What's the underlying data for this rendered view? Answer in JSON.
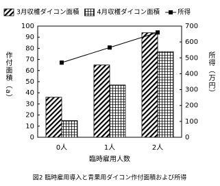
{
  "chart_data": {
    "type": "bar_line",
    "title": "図2 臨時雇用導入と青果用ダイコン作付面積および所得",
    "x_label": "臨時雇用人数",
    "y_label": "作付面積（a）",
    "y2_label": "所得（万円）",
    "categories": [
      "0人",
      "1人",
      "2人"
    ],
    "series": [
      {
        "name": "3月収穫ダイコン面積",
        "type": "bar",
        "pattern": "diagonal",
        "color": "#000000",
        "values": [
          36,
          65,
          94
        ]
      },
      {
        "name": "4月収穫ダイコン面積",
        "type": "bar",
        "pattern": "grid",
        "color": "#000000",
        "values": [
          15,
          47,
          77
        ]
      },
      {
        "name": "所得",
        "type": "line",
        "axis": "y2",
        "color": "#000000",
        "values": [
          470,
          565,
          660
        ]
      }
    ],
    "ylim": [
      0,
      100
    ],
    "yticks": [
      0,
      10,
      20,
      30,
      40,
      50,
      60,
      70,
      80,
      90,
      100
    ],
    "y2lim": [
      0,
      700
    ],
    "y2ticks": [
      0,
      100,
      200,
      300,
      400,
      500,
      600,
      700
    ]
  }
}
